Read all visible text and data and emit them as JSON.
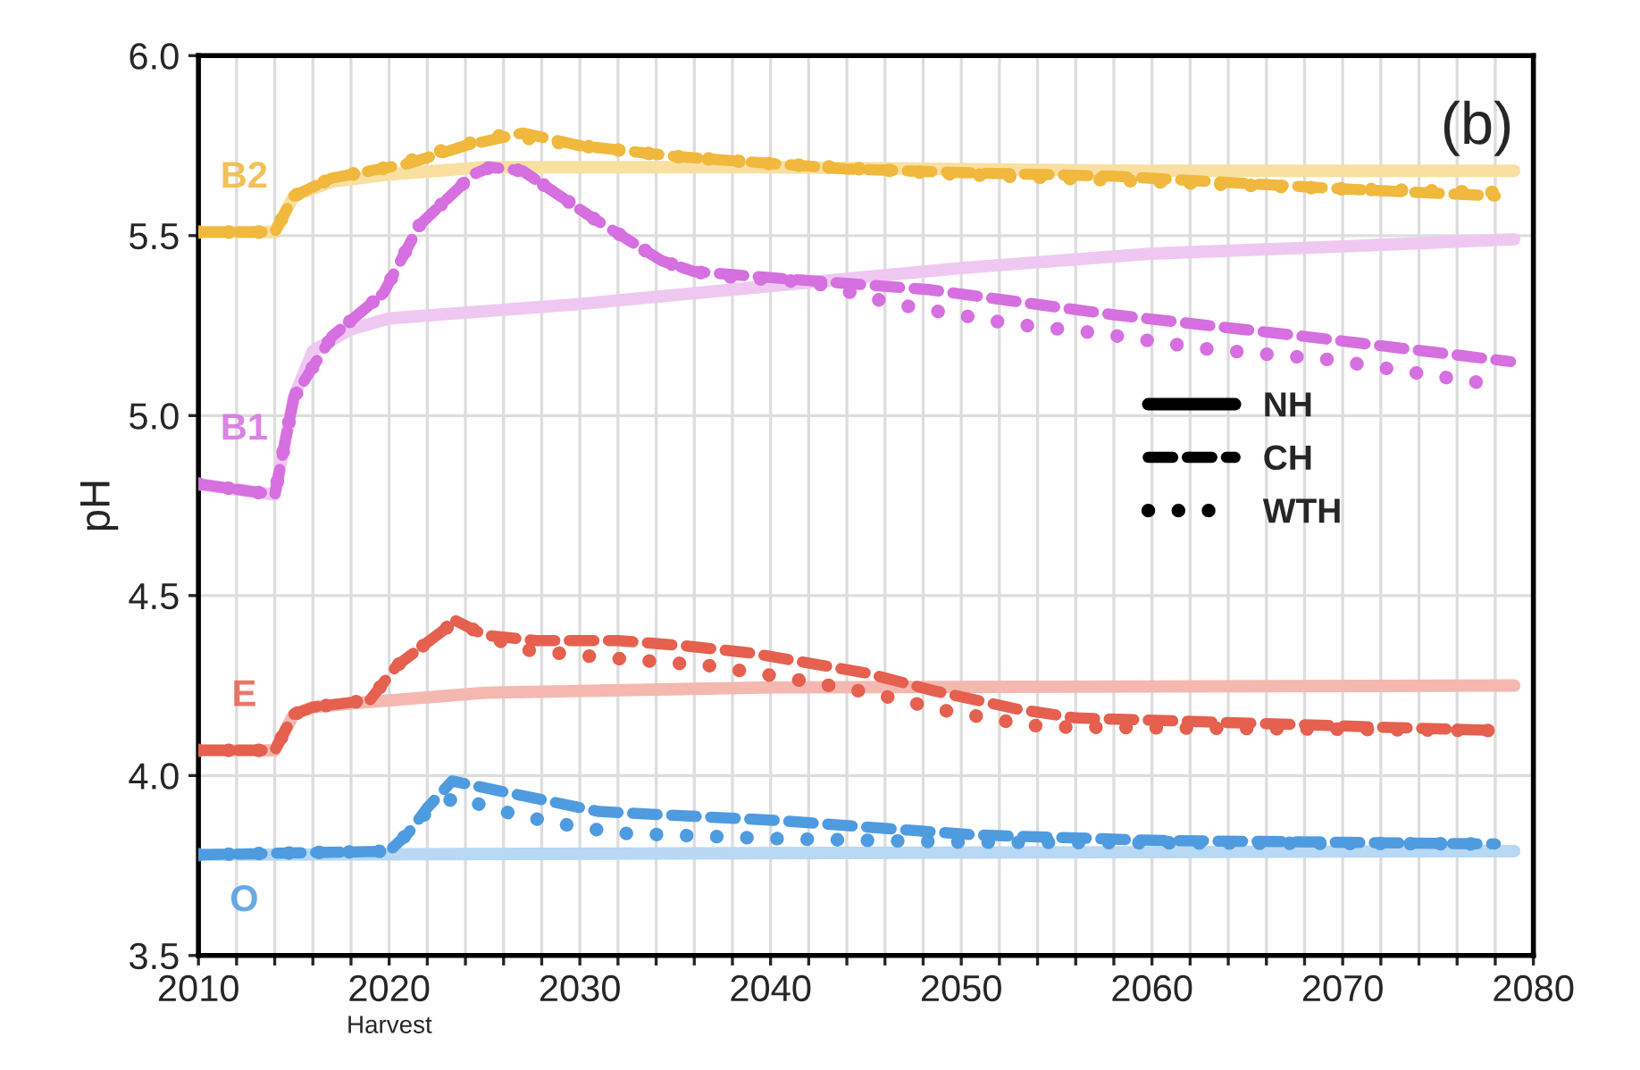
{
  "chart_data": {
    "type": "line",
    "ylabel": "pH",
    "xlim": [
      2010,
      2080
    ],
    "ylim": [
      3.5,
      6.0
    ],
    "xticks": [
      2010,
      {
        "value": 2012,
        "label": null
      },
      {
        "value": 2014,
        "label": null
      },
      {
        "value": 2016,
        "label": null
      },
      {
        "value": 2018,
        "label": null
      },
      2020,
      {
        "value": 2022,
        "label": null
      },
      {
        "value": 2024,
        "label": null
      },
      {
        "value": 2026,
        "label": null
      },
      {
        "value": 2028,
        "label": null
      },
      2030,
      {
        "value": 2032,
        "label": null
      },
      {
        "value": 2034,
        "label": null
      },
      {
        "value": 2036,
        "label": null
      },
      {
        "value": 2038,
        "label": null
      },
      2040,
      {
        "value": 2042,
        "label": null
      },
      {
        "value": 2044,
        "label": null
      },
      {
        "value": 2046,
        "label": null
      },
      {
        "value": 2048,
        "label": null
      },
      2050,
      {
        "value": 2052,
        "label": null
      },
      {
        "value": 2054,
        "label": null
      },
      {
        "value": 2056,
        "label": null
      },
      {
        "value": 2058,
        "label": null
      },
      2060,
      {
        "value": 2062,
        "label": null
      },
      {
        "value": 2064,
        "label": null
      },
      {
        "value": 2066,
        "label": null
      },
      {
        "value": 2068,
        "label": null
      },
      2070,
      {
        "value": 2072,
        "label": null
      },
      {
        "value": 2074,
        "label": null
      },
      {
        "value": 2076,
        "label": null
      },
      {
        "value": 2078,
        "label": null
      },
      2080
    ],
    "yticks": [
      {
        "value": 3.5,
        "label": "3.5"
      },
      {
        "value": 4.0,
        "label": "4.0"
      },
      {
        "value": 4.5,
        "label": "4.5"
      },
      {
        "value": 5.0,
        "label": "5.0"
      },
      {
        "value": 5.5,
        "label": "5.5"
      },
      {
        "value": 6.0,
        "label": "6.0"
      }
    ],
    "grid": true,
    "marker": "none",
    "annotations": [
      "NH",
      "CH",
      "WTH",
      "(b)",
      "Harvest"
    ],
    "series": [
      {
        "line_style": "solid",
        "color": "#f9dfa0",
        "x": [
          2010,
          2014,
          2015,
          2017,
          2020,
          2025,
          2040,
          2060,
          2079
        ],
        "values": [
          5.51,
          5.51,
          5.61,
          5.65,
          5.67,
          5.69,
          5.69,
          5.68,
          5.68
        ]
      },
      {
        "name": "B2",
        "line_style": "dashed",
        "color": "#f0b83c",
        "x": [
          2010,
          2014,
          2015,
          2017,
          2021,
          2024,
          2027,
          2030,
          2035,
          2044,
          2050,
          2058,
          2070,
          2078
        ],
        "values": [
          5.51,
          5.51,
          5.61,
          5.66,
          5.7,
          5.75,
          5.785,
          5.75,
          5.72,
          5.685,
          5.675,
          5.665,
          5.63,
          5.61
        ]
      },
      {
        "line_style": "dotted",
        "color": "#f0b83c",
        "x": [
          2010,
          2014,
          2015,
          2017,
          2020,
          2023,
          2026,
          2030,
          2035,
          2040,
          2050,
          2060,
          2070,
          2078
        ],
        "values": [
          5.51,
          5.51,
          5.61,
          5.66,
          5.69,
          5.74,
          5.78,
          5.75,
          5.72,
          5.7,
          5.67,
          5.65,
          5.63,
          5.62
        ]
      },
      {
        "line_style": "solid",
        "color": "#efc8f2",
        "x": [
          2010,
          2014,
          2015,
          2016,
          2018,
          2020,
          2030,
          2040,
          2050,
          2060,
          2070,
          2079
        ],
        "values": [
          4.81,
          4.78,
          5.05,
          5.18,
          5.24,
          5.27,
          5.31,
          5.36,
          5.41,
          5.45,
          5.47,
          5.49
        ]
      },
      {
        "name": "B1",
        "line_style": "dashed",
        "color": "#d66fe0",
        "x": [
          2010,
          2014,
          2015,
          2017,
          2019.7,
          2021.6,
          2024.4,
          2025.3,
          2027,
          2030.5,
          2034.3,
          2036,
          2040.8,
          2048.3,
          2058,
          2068,
          2078.8
        ],
        "values": [
          4.81,
          4.78,
          5.05,
          5.22,
          5.34,
          5.53,
          5.67,
          5.69,
          5.68,
          5.555,
          5.43,
          5.4,
          5.38,
          5.35,
          5.28,
          5.22,
          5.15
        ]
      },
      {
        "line_style": "dotted",
        "color": "#d66fe0",
        "x": [
          2010,
          2014,
          2015,
          2017,
          2019.7,
          2021.6,
          2024.4,
          2025.3,
          2027,
          2030.5,
          2034.3,
          2036,
          2038,
          2042.2,
          2046.5,
          2052.6,
          2057,
          2062.9,
          2069.4,
          2075.5,
          2077.4
        ],
        "values": [
          4.81,
          4.78,
          5.05,
          5.22,
          5.34,
          5.53,
          5.67,
          5.69,
          5.68,
          5.555,
          5.43,
          5.4,
          5.385,
          5.37,
          5.31,
          5.255,
          5.23,
          5.185,
          5.155,
          5.105,
          5.09
        ]
      },
      {
        "line_style": "solid",
        "color": "#f4b8b0",
        "x": [
          2010,
          2014,
          2015,
          2016,
          2018,
          2025,
          2040,
          2079
        ],
        "values": [
          4.07,
          4.07,
          4.17,
          4.19,
          4.2,
          4.23,
          4.245,
          4.25
        ]
      },
      {
        "name": "E",
        "line_style": "dashed",
        "color": "#e5604e",
        "x": [
          2010,
          2014,
          2015,
          2016,
          2019,
          2020.4,
          2023.5,
          2025,
          2027.7,
          2032,
          2035.6,
          2039,
          2045,
          2048.6,
          2052.9,
          2056,
          2078
        ],
        "values": [
          4.07,
          4.07,
          4.17,
          4.19,
          4.21,
          4.305,
          4.43,
          4.39,
          4.375,
          4.375,
          4.36,
          4.34,
          4.285,
          4.235,
          4.185,
          4.16,
          4.125
        ]
      },
      {
        "line_style": "dotted",
        "color": "#e5604e",
        "x": [
          2010,
          2014,
          2015,
          2016,
          2019,
          2020.4,
          2023.5,
          2025,
          2027,
          2030.8,
          2036.8,
          2041,
          2045.2,
          2049.2,
          2053.5,
          2055,
          2078
        ],
        "values": [
          4.07,
          4.07,
          4.17,
          4.19,
          4.21,
          4.305,
          4.43,
          4.39,
          4.35,
          4.33,
          4.305,
          4.27,
          4.23,
          4.18,
          4.14,
          4.135,
          4.125
        ]
      },
      {
        "line_style": "solid",
        "color": "#b8d8f4",
        "x": [
          2010,
          2079
        ],
        "values": [
          3.78,
          3.79
        ]
      },
      {
        "name": "O",
        "line_style": "dashed",
        "color": "#4f9be0",
        "x": [
          2010,
          2020,
          2021,
          2022,
          2023.3,
          2026,
          2031,
          2040.4,
          2050.7,
          2060,
          2078
        ],
        "values": [
          3.78,
          3.79,
          3.84,
          3.91,
          3.985,
          3.955,
          3.9,
          3.875,
          3.835,
          3.82,
          3.81
        ]
      },
      {
        "line_style": "dotted",
        "color": "#4f9be0",
        "x": [
          2010,
          2020,
          2021,
          2022,
          2023.5,
          2026,
          2028.5,
          2032,
          2040,
          2050,
          2078
        ],
        "values": [
          3.78,
          3.79,
          3.84,
          3.9,
          3.94,
          3.9,
          3.87,
          3.84,
          3.825,
          3.815,
          3.81
        ]
      }
    ]
  }
}
